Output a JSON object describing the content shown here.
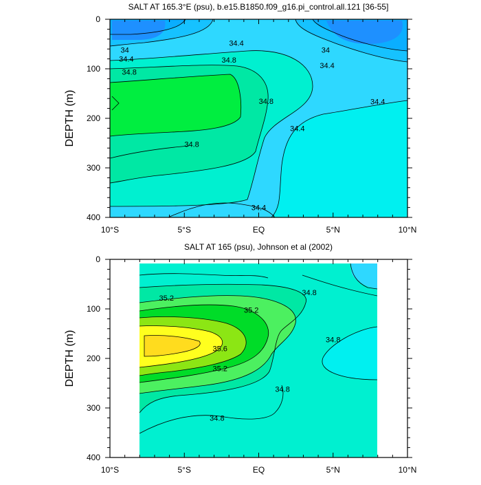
{
  "chart_data": [
    {
      "type": "contour",
      "title": "SALT AT 165.3°E (psu), b.e15.B1850.f09_g16.pi_control.all.121 [36-55]",
      "xlabel": "",
      "ylabel": "DEPTH (m)",
      "x_ticks": [
        "10°S",
        "5°S",
        "EQ",
        "5°N",
        "10°N"
      ],
      "x_range": [
        -10,
        10
      ],
      "y_ticks": [
        "0",
        "100",
        "200",
        "300",
        "400"
      ],
      "ylim": [
        0,
        400
      ],
      "y_inverted": true,
      "fill_levels": [
        {
          "min": 33.6,
          "max": 33.8,
          "color": "#1E90FF"
        },
        {
          "min": 33.8,
          "max": 34.0,
          "color": "#0AAEFF"
        },
        {
          "min": 34.0,
          "max": 34.2,
          "color": "#16C2FF"
        },
        {
          "min": 34.2,
          "max": 34.4,
          "color": "#2ED8FF"
        },
        {
          "min": 34.4,
          "max": 34.6,
          "color": "#00F0F0"
        },
        {
          "min": 34.6,
          "max": 34.8,
          "color": "#00F0D0"
        },
        {
          "min": 34.8,
          "max": 35.0,
          "color": "#00E8A4"
        },
        {
          "min": 35.0,
          "max": 35.2,
          "color": "#00EE40"
        }
      ],
      "contour_labels": [
        {
          "text": "34",
          "lat": -9.0,
          "depth": 62
        },
        {
          "text": "34.4",
          "lat": -8.9,
          "depth": 80
        },
        {
          "text": "34.8",
          "lat": -8.7,
          "depth": 106
        },
        {
          "text": "34.4",
          "lat": -1.5,
          "depth": 48
        },
        {
          "text": "34.8",
          "lat": -2.0,
          "depth": 82
        },
        {
          "text": "34",
          "lat": 4.5,
          "depth": 62
        },
        {
          "text": "34.4",
          "lat": 4.6,
          "depth": 93
        },
        {
          "text": "34.8",
          "lat": 0.5,
          "depth": 165
        },
        {
          "text": "34.4",
          "lat": 8.0,
          "depth": 166
        },
        {
          "text": "34.4",
          "lat": 2.6,
          "depth": 220
        },
        {
          "text": "34.8",
          "lat": -4.5,
          "depth": 252
        },
        {
          "text": "34.4",
          "lat": 0.0,
          "depth": 380
        }
      ]
    },
    {
      "type": "contour",
      "title": "SALT AT 165 (psu), Johnson et al (2002)",
      "xlabel": "",
      "ylabel": "DEPTH (m)",
      "x_ticks": [
        "10°S",
        "5°S",
        "EQ",
        "5°N",
        "10°N"
      ],
      "x_range": [
        -10,
        10
      ],
      "data_x_range": [
        -8,
        8
      ],
      "y_ticks": [
        "0",
        "100",
        "200",
        "300",
        "400"
      ],
      "ylim": [
        0,
        400
      ],
      "y_inverted": true,
      "fill_levels": [
        {
          "min": 34.2,
          "max": 34.4,
          "color": "#2ED8FF"
        },
        {
          "min": 34.4,
          "max": 34.6,
          "color": "#00F0F0"
        },
        {
          "min": 34.6,
          "max": 34.8,
          "color": "#00F0D0"
        },
        {
          "min": 34.8,
          "max": 35.0,
          "color": "#00E8A4"
        },
        {
          "min": 35.0,
          "max": 35.2,
          "color": "#4CF060"
        },
        {
          "min": 35.2,
          "max": 35.4,
          "color": "#00DC28"
        },
        {
          "min": 35.4,
          "max": 35.6,
          "color": "#8CE614"
        },
        {
          "min": 35.6,
          "max": 35.8,
          "color": "#FFFF1E"
        },
        {
          "min": 35.8,
          "max": 36.0,
          "color": "#FFDC1E"
        }
      ],
      "contour_labels": [
        {
          "text": "35.2",
          "lat": -6.2,
          "depth": 78
        },
        {
          "text": "35.2",
          "lat": -0.5,
          "depth": 102
        },
        {
          "text": "34.8",
          "lat": 3.4,
          "depth": 67
        },
        {
          "text": "34.8",
          "lat": 5.0,
          "depth": 162
        },
        {
          "text": "35.6",
          "lat": -2.6,
          "depth": 180
        },
        {
          "text": "35.2",
          "lat": -2.6,
          "depth": 220
        },
        {
          "text": "34.8",
          "lat": 1.6,
          "depth": 262
        },
        {
          "text": "34.8",
          "lat": -2.8,
          "depth": 320
        }
      ]
    }
  ]
}
